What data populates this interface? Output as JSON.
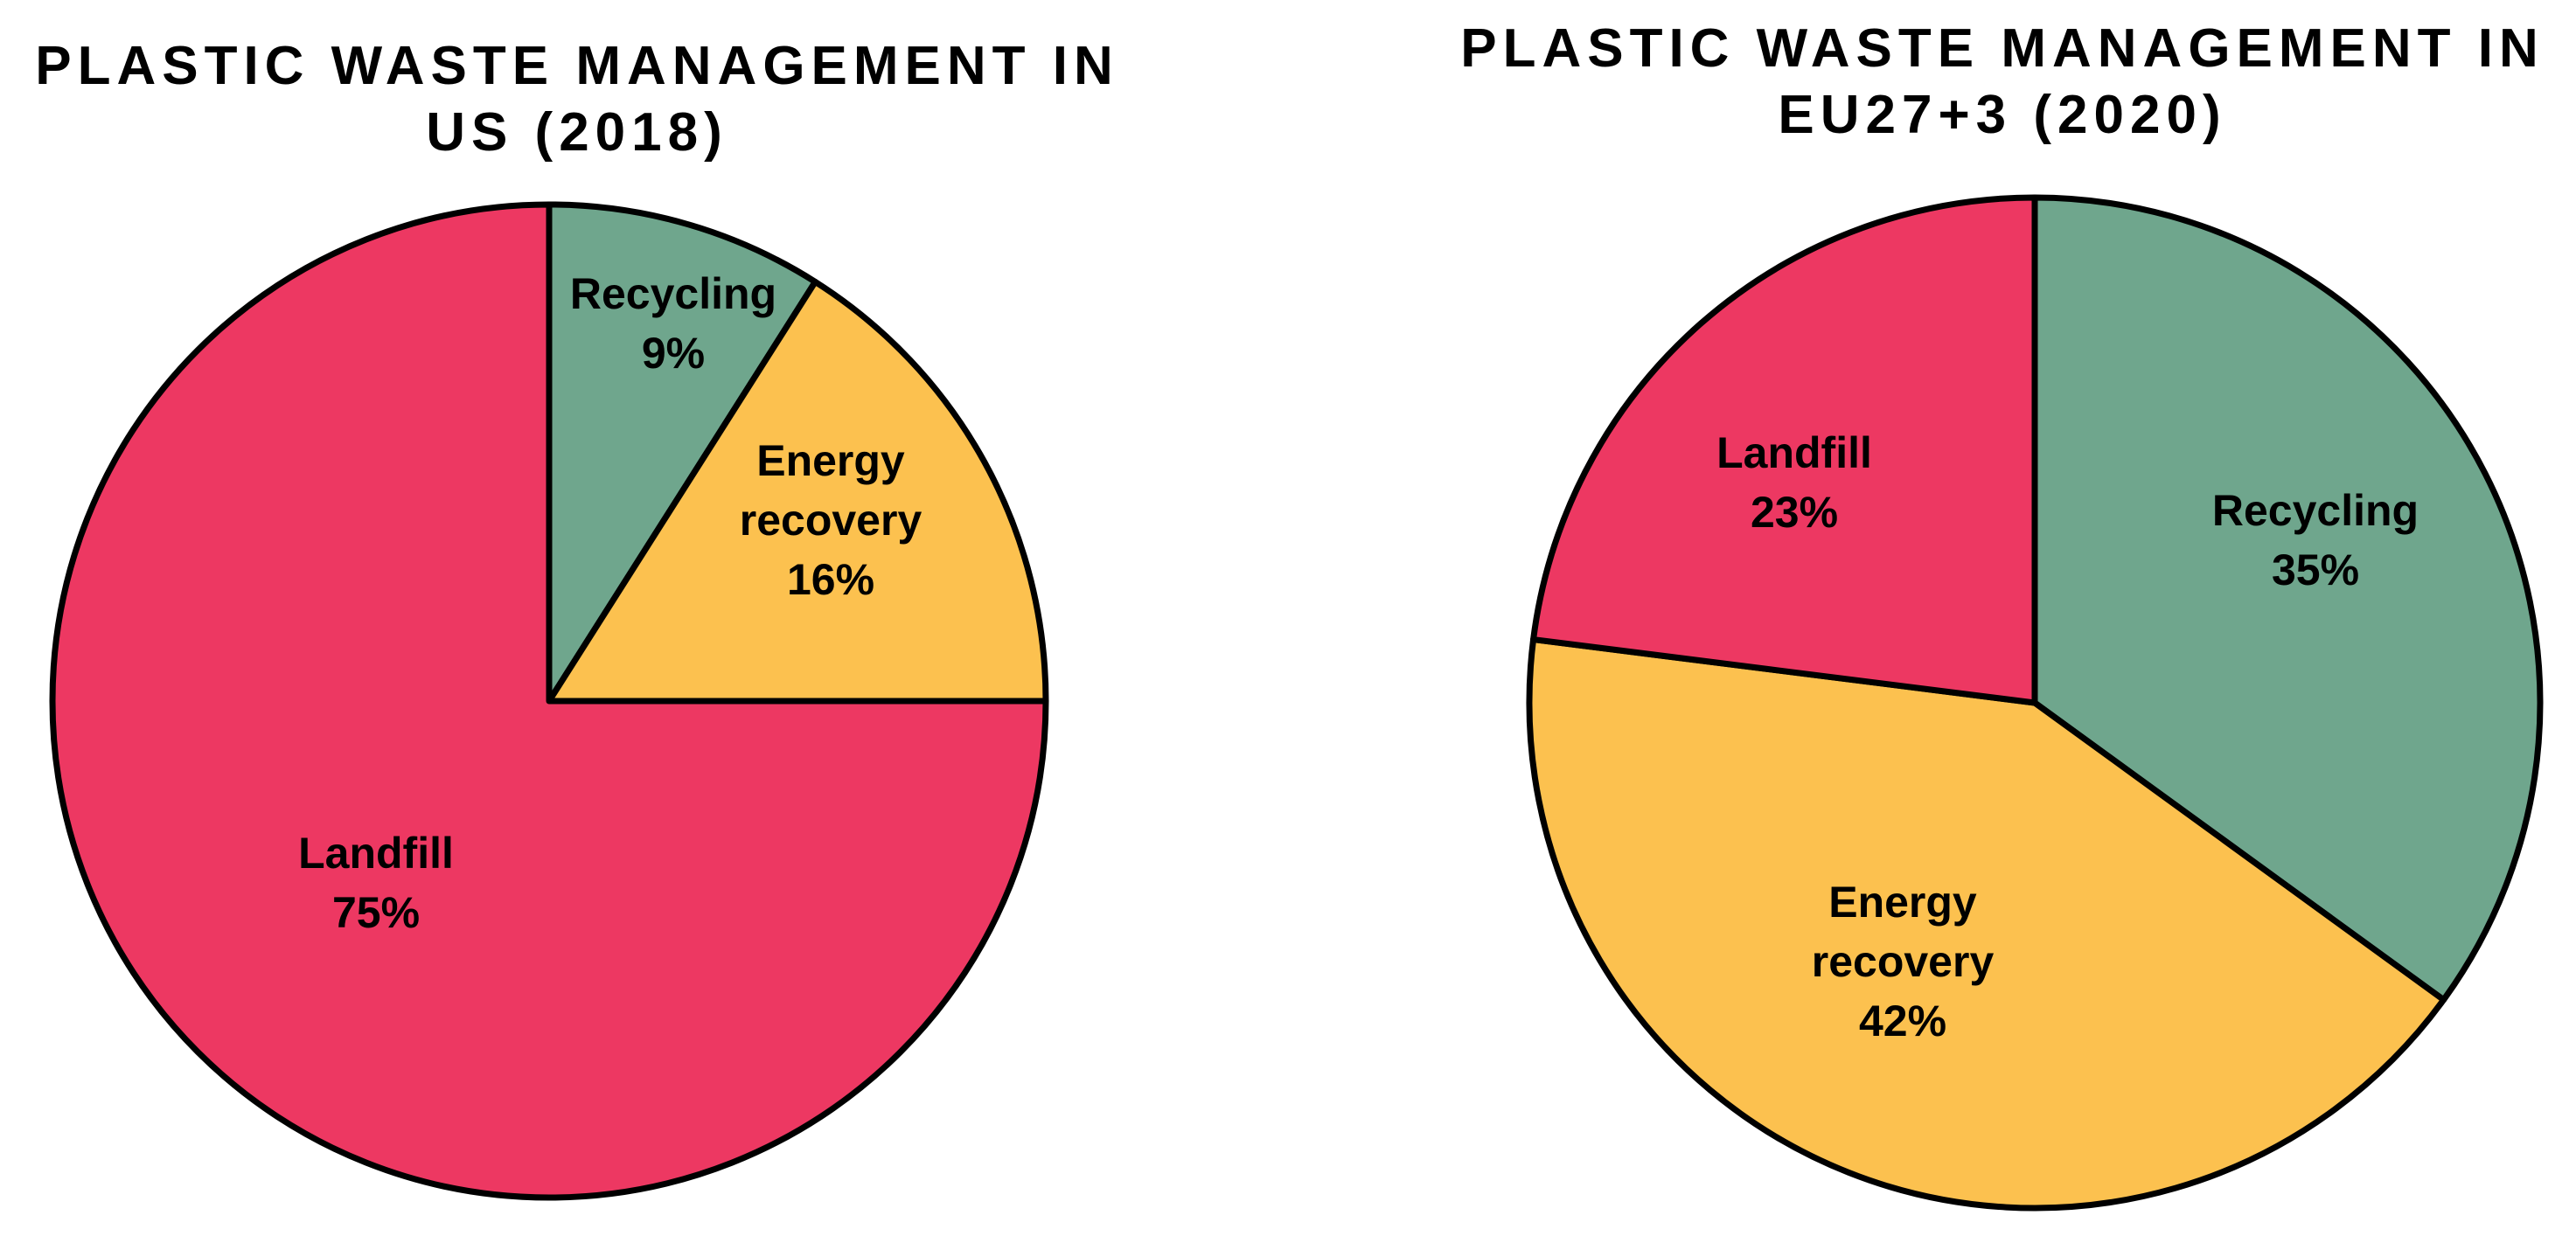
{
  "chart_data": [
    {
      "type": "pie",
      "title_lines": [
        "PLASTIC WASTE MANAGEMENT IN",
        "US (2018)"
      ],
      "start_angle_deg": 0,
      "direction": "clockwise",
      "slices": [
        {
          "name": "Recycling",
          "label_lines": [
            "Recycling",
            "9%"
          ],
          "value": 9,
          "color": "#6fa68d"
        },
        {
          "name": "Energy recovery",
          "label_lines": [
            "Energy",
            "recovery",
            "16%"
          ],
          "value": 16,
          "color": "#fcc14f"
        },
        {
          "name": "Landfill",
          "label_lines": [
            "Landfill",
            "75%"
          ],
          "value": 75,
          "color": "#ed3862"
        }
      ]
    },
    {
      "type": "pie",
      "title_lines": [
        "PLASTIC WASTE MANAGEMENT IN",
        "EU27+3 (2020)"
      ],
      "start_angle_deg": 0,
      "direction": "clockwise",
      "slices": [
        {
          "name": "Recycling",
          "label_lines": [
            "Recycling",
            "35%"
          ],
          "value": 35,
          "color": "#6fa68d"
        },
        {
          "name": "Energy recovery",
          "label_lines": [
            "Energy",
            "recovery",
            "42%"
          ],
          "value": 42,
          "color": "#fcc14f"
        },
        {
          "name": "Landfill",
          "label_lines": [
            "Landfill",
            "23%"
          ],
          "value": 23,
          "color": "#ed3862"
        }
      ]
    }
  ]
}
